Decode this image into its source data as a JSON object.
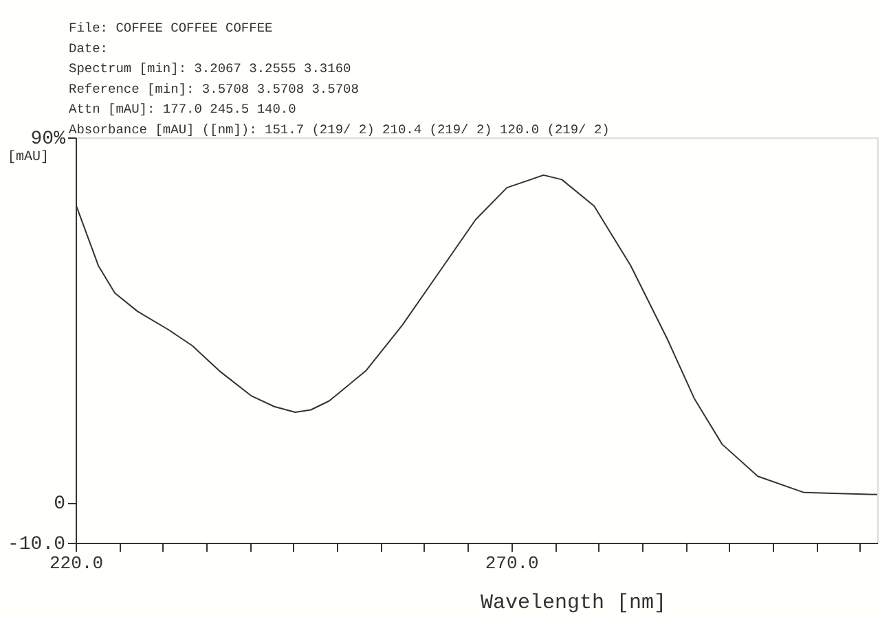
{
  "chart_data": {
    "type": "line",
    "annotations": [
      "File:                    COFFEE       COFFEE       COFFEE",
      "Date:",
      "Spectrum [min]:          3.2067       3.2555       3.3160",
      "Reference [min]:         3.5708       3.5708       3.5708",
      "Attn [mAU]:              177.0        245.5        140.0",
      "Absorbance [mAU] ([nm]): 151.7 (219/ 2) 210.4 (219/ 2) 120.0 (219/ 2)"
    ],
    "xlabel": "Wavelength [nm]",
    "ylabel": "[mAU]",
    "series": [
      {
        "color": "#333333",
        "x": [
          220,
          222.6,
          224.5,
          227.1,
          230.7,
          233.4,
          236.5,
          240.2,
          242.8,
          245.2,
          247,
          249.1,
          253.3,
          257.5,
          261.7,
          265.9,
          269.5,
          273.7,
          275.8,
          279.5,
          283.7,
          287.9,
          291.0,
          294.2,
          298.3,
          303.6,
          312
        ],
        "values": [
          73.6,
          58.4,
          51.6,
          47.1,
          42.5,
          38.6,
          32.4,
          26.2,
          23.6,
          22.2,
          22.8,
          25.0,
          32.4,
          43.7,
          56.7,
          69.7,
          77.6,
          80.7,
          79.6,
          73.1,
          58.4,
          40.3,
          25.6,
          14.3,
          6.4,
          2.4,
          1.9
        ]
      }
    ],
    "xlim": [
      220,
      312
    ],
    "xticks": [
      {
        "value": 220,
        "label": "220.0"
      },
      {
        "value": 225,
        "label": null
      },
      {
        "value": 230,
        "label": null
      },
      {
        "value": 235,
        "label": null
      },
      {
        "value": 240,
        "label": null
      },
      {
        "value": 245,
        "label": null
      },
      {
        "value": 250,
        "label": null
      },
      {
        "value": 255,
        "label": null
      },
      {
        "value": 260,
        "label": null
      },
      {
        "value": 265,
        "label": null
      },
      {
        "value": 270,
        "label": "270.0"
      },
      {
        "value": 275,
        "label": null
      },
      {
        "value": 280,
        "label": null
      },
      {
        "value": 285,
        "label": null
      },
      {
        "value": 290,
        "label": null
      },
      {
        "value": 295,
        "label": null
      },
      {
        "value": 300,
        "label": null
      },
      {
        "value": 305,
        "label": null
      },
      {
        "value": 310,
        "label": null
      }
    ],
    "ylim": [
      -10,
      90
    ],
    "yticks": [
      {
        "value": -10,
        "label": "-10.0"
      },
      {
        "value": 0,
        "label": "0"
      },
      {
        "value": 90,
        "label": "90%"
      }
    ],
    "grid": false,
    "line_style": "solid"
  }
}
